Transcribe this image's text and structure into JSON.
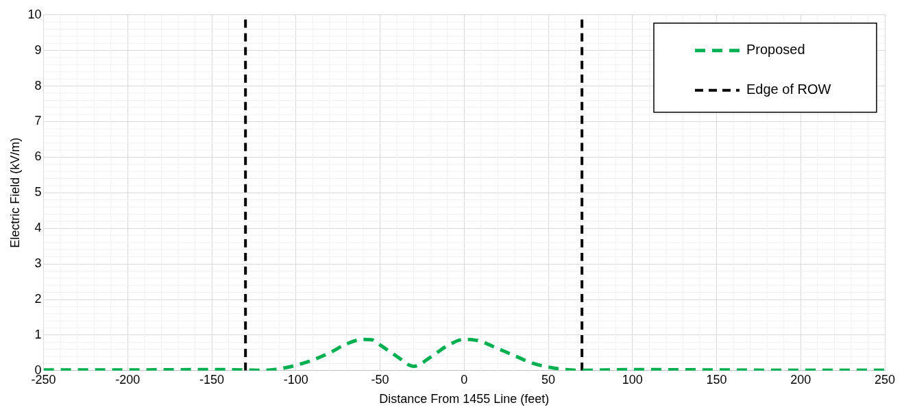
{
  "chart_data": {
    "type": "line",
    "xlabel": "Distance From 1455 Line (feet)",
    "ylabel": "Electric Field (kV/m)",
    "xlim": [
      -250,
      250
    ],
    "xticks": [
      -250,
      -200,
      -150,
      -100,
      -50,
      0,
      50,
      100,
      150,
      200,
      250
    ],
    "ylim": [
      0,
      10
    ],
    "yticks": [
      0,
      1,
      2,
      3,
      4,
      5,
      6,
      7,
      8,
      9,
      10
    ],
    "grid": true,
    "legend": "top right",
    "marker": "none",
    "series": [
      {
        "name": "Proposed",
        "color": "#00b050",
        "line_style": "dashed",
        "x": [
          -250,
          -200,
          -150,
          -130,
          -120,
          -110,
          -100,
          -90,
          -80,
          -70,
          -60,
          -55,
          -50,
          -40,
          -30,
          -20,
          -10,
          0,
          5,
          10,
          20,
          30,
          40,
          50,
          60,
          70,
          100,
          150,
          200,
          250
        ],
        "values": [
          0.02,
          0.02,
          0.03,
          0.02,
          0.01,
          0.05,
          0.15,
          0.3,
          0.5,
          0.75,
          0.88,
          0.87,
          0.72,
          0.4,
          0.12,
          0.38,
          0.7,
          0.88,
          0.87,
          0.82,
          0.62,
          0.42,
          0.22,
          0.1,
          0.03,
          0.01,
          0.03,
          0.02,
          0.01,
          0.01
        ]
      },
      {
        "name": "Edge of ROW",
        "color": "#000000",
        "line_style": "dashed",
        "x": [
          -130,
          -130,
          null,
          70,
          70
        ],
        "values": [
          0,
          10,
          null,
          0,
          10
        ]
      }
    ]
  }
}
